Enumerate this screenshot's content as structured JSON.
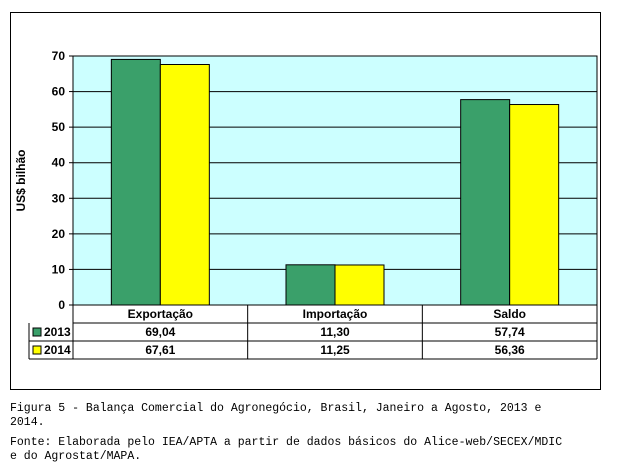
{
  "chart_data": {
    "type": "bar",
    "title": "",
    "xlabel": "",
    "ylabel": "US$ bilhão",
    "ylim": [
      0,
      70
    ],
    "yticks": [
      0,
      10,
      20,
      30,
      40,
      50,
      60,
      70
    ],
    "grid": true,
    "categories": [
      "Exportação",
      "Importação",
      "Saldo"
    ],
    "series": [
      {
        "name": "2013",
        "color": "#3aa06a",
        "values": [
          69.04,
          11.3,
          57.74
        ],
        "labels": [
          "69,04",
          "11,30",
          "57,74"
        ]
      },
      {
        "name": "2014",
        "color": "#ffff00",
        "values": [
          67.61,
          11.25,
          56.36
        ],
        "labels": [
          "67,61",
          "11,25",
          "56,36"
        ]
      }
    ],
    "plot_background": "#ccffff",
    "data_table": true
  },
  "caption": "Figura 5 - Balança Comercial do Agronegócio, Brasil, Janeiro a Agosto, 2013 e\n2014.",
  "source": "Fonte: Elaborada pelo IEA/APTA a partir de dados básicos do Alice-web/SECEX/MDIC\ne do Agrostat/MAPA."
}
